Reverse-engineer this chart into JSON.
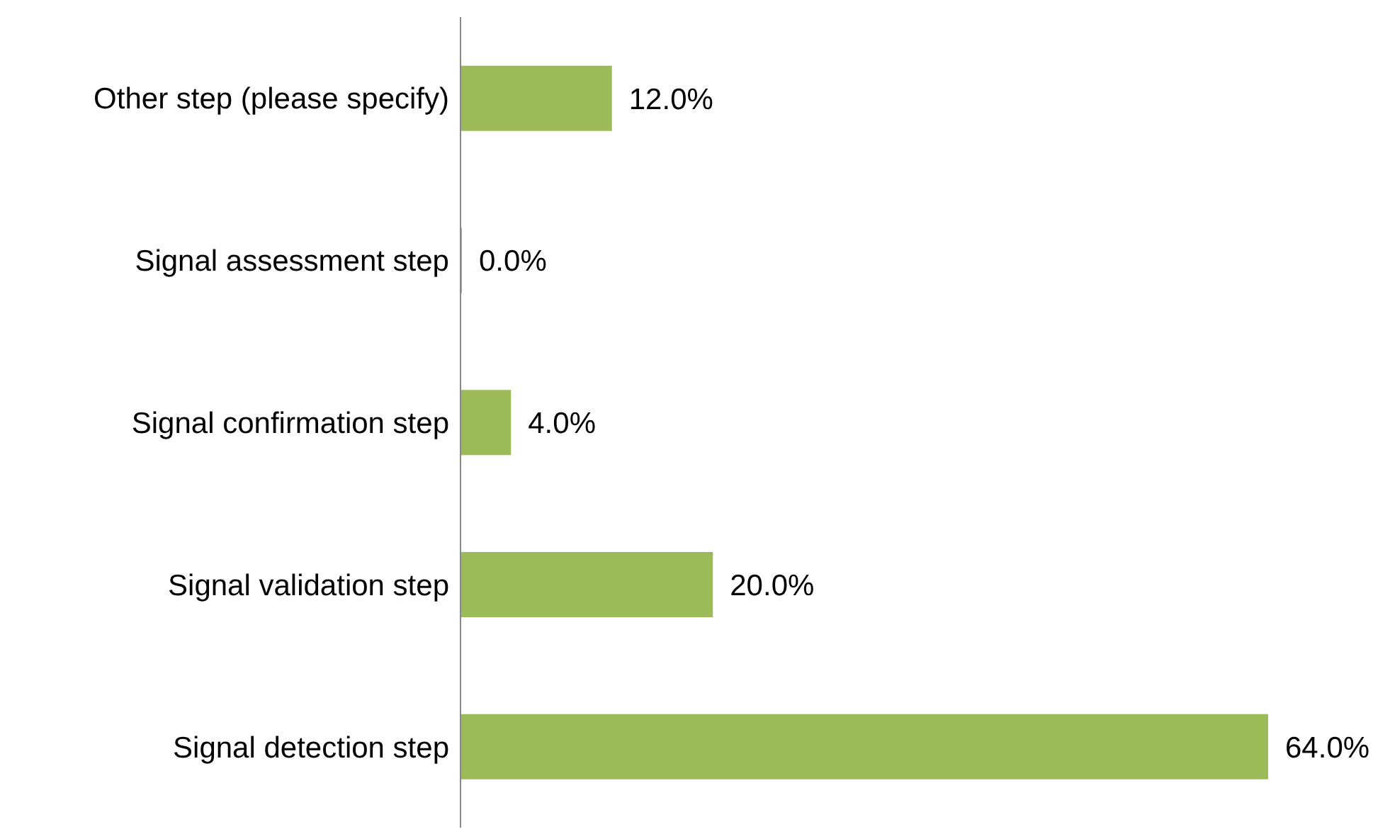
{
  "chart_data": {
    "type": "bar",
    "orientation": "horizontal",
    "categories": [
      "Other step (please specify)",
      "Signal assessment step",
      "Signal confirmation step",
      "Signal validation step",
      "Signal detection step"
    ],
    "values": [
      12,
      0,
      4,
      20,
      64
    ],
    "value_labels": [
      "12.0%",
      "0.0%",
      "4.0%",
      "20.0%",
      "64.0%"
    ],
    "color": "#9bbb59",
    "grid": false,
    "legend": false
  }
}
